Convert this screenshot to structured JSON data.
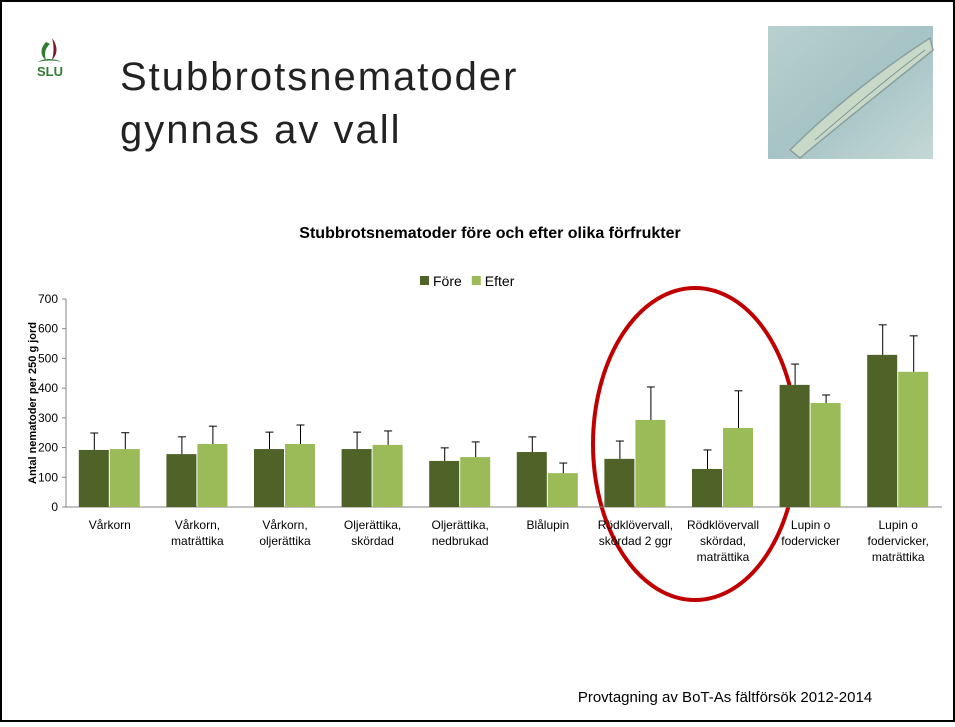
{
  "slide": {
    "logo": "SLU",
    "title": [
      "Stubbrotsnematoder",
      "gynnas av vall"
    ],
    "footer": "Provtagning av BoT-As fältförsök 2012-2014"
  },
  "chart_data": {
    "type": "bar",
    "title": "Stubbrotsnematoder före och efter olika förfrukter",
    "y_label": "Antal  nematoder per 250 g jord",
    "categories": [
      [
        "Vårkorn"
      ],
      [
        "Vårkorn,",
        "maträttika"
      ],
      [
        "Vårkorn,",
        "oljerättika"
      ],
      [
        "Oljerättika,",
        "skördad"
      ],
      [
        "Oljerättika,",
        "nedbrukad"
      ],
      [
        "Blålupin"
      ],
      [
        "Rödklövervall,",
        "skördad 2 ggr"
      ],
      [
        "Rödklövervall",
        "skördad,",
        "maträttika"
      ],
      [
        "Lupin o",
        "fodervicker"
      ],
      [
        "Lupin o",
        "fodervicker,",
        "maträttika"
      ]
    ],
    "series": [
      {
        "name": "Före",
        "color": "#4f6228",
        "values": [
          192,
          178,
          195,
          195,
          155,
          185,
          162,
          128,
          411,
          512
        ],
        "errors": [
          57,
          58,
          57,
          57,
          44,
          51,
          60,
          64,
          70,
          101
        ]
      },
      {
        "name": "Efter",
        "color": "#9bbb59",
        "values": [
          195,
          212,
          212,
          209,
          168,
          114,
          293,
          266,
          350,
          455
        ],
        "errors": [
          55,
          60,
          64,
          47,
          51,
          34,
          111,
          125,
          27,
          121
        ]
      }
    ],
    "ylim": [
      0,
      700
    ],
    "yticks": [
      0,
      100,
      200,
      300,
      400,
      500,
      600,
      700
    ],
    "grid": false,
    "legend": "top"
  }
}
